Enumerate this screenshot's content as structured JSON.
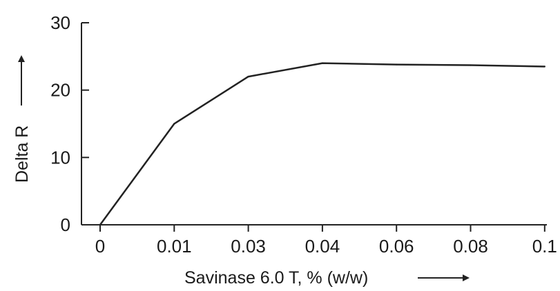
{
  "chart_data": {
    "type": "line",
    "title": "",
    "xlabel": "Savinase 6.0 T, % (w/w)",
    "ylabel": "Delta R",
    "x_tick_labels": [
      "0",
      "0.01",
      "0.03",
      "0.04",
      "0.06",
      "0.08",
      "0.1"
    ],
    "y_tick_labels": [
      "0",
      "10",
      "20",
      "30"
    ],
    "ylim": [
      0,
      30
    ],
    "grid": false,
    "legend": "none",
    "series": [
      {
        "x_tick_index": [
          0,
          1,
          2,
          3,
          4,
          5,
          6
        ],
        "y": [
          0,
          15,
          22,
          24,
          23.8,
          23.7,
          23.5
        ]
      }
    ],
    "colors": {
      "line": "#222222",
      "axis": "#222222",
      "text": "#1a1a1a"
    }
  }
}
